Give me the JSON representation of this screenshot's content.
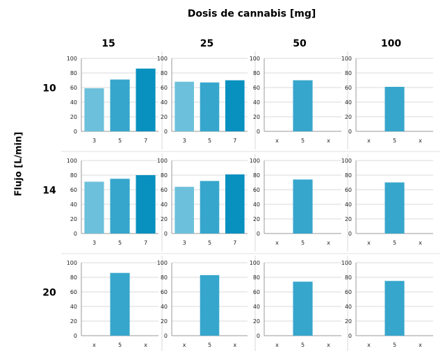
{
  "chart_data": {
    "type": "bar",
    "title": "Dosis de cannabis [mg]",
    "ylabel": "Flujo [L/min]",
    "column_labels": [
      "15",
      "25",
      "50",
      "100"
    ],
    "row_labels": [
      "10",
      "14",
      "20"
    ],
    "ylim": [
      0,
      100
    ],
    "yticks": [
      0,
      20,
      40,
      60,
      80,
      100
    ],
    "grid": true,
    "colors": {
      "3": "#6cc0db",
      "5": "#36a6cc",
      "7": "#0890bf"
    },
    "panels": [
      [
        {
          "categories": [
            "3",
            "5",
            "7"
          ],
          "values": [
            59,
            71,
            86
          ]
        },
        {
          "categories": [
            "3",
            "5",
            "7"
          ],
          "values": [
            68,
            67,
            70
          ]
        },
        {
          "categories": [
            "x",
            "5",
            "x"
          ],
          "values": [
            null,
            70,
            null
          ]
        },
        {
          "categories": [
            "x",
            "5",
            "x"
          ],
          "values": [
            null,
            61,
            null
          ]
        }
      ],
      [
        {
          "categories": [
            "3",
            "5",
            "7"
          ],
          "values": [
            71,
            75,
            80
          ]
        },
        {
          "categories": [
            "3",
            "5",
            "7"
          ],
          "values": [
            64,
            72,
            81
          ]
        },
        {
          "categories": [
            "x",
            "5",
            "x"
          ],
          "values": [
            null,
            74,
            null
          ]
        },
        {
          "categories": [
            "x",
            "5",
            "x"
          ],
          "values": [
            null,
            70,
            null
          ]
        }
      ],
      [
        {
          "categories": [
            "x",
            "5",
            "x"
          ],
          "values": [
            null,
            86,
            null
          ]
        },
        {
          "categories": [
            "x",
            "5",
            "x"
          ],
          "values": [
            null,
            83,
            null
          ]
        },
        {
          "categories": [
            "x",
            "5",
            "x"
          ],
          "values": [
            null,
            74,
            null
          ]
        },
        {
          "categories": [
            "x",
            "5",
            "x"
          ],
          "values": [
            null,
            75,
            null
          ]
        }
      ]
    ]
  }
}
